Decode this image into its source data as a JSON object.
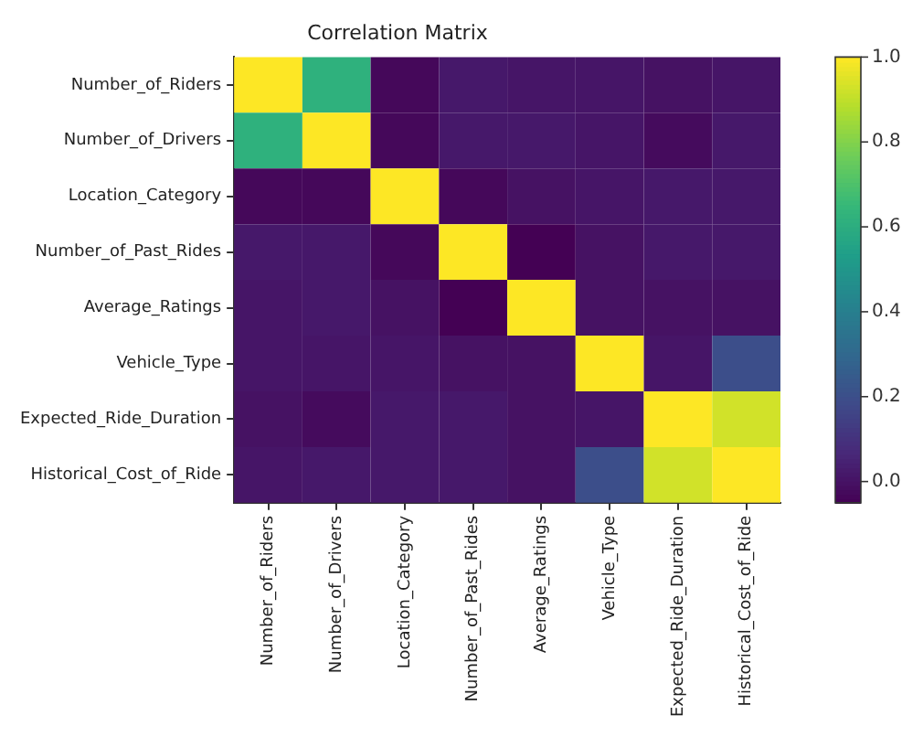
{
  "chart_data": {
    "type": "heatmap",
    "title": "Correlation Matrix",
    "categories": [
      "Number_of_Riders",
      "Number_of_Drivers",
      "Location_Category",
      "Number_of_Past_Rides",
      "Average_Ratings",
      "Vehicle_Type",
      "Expected_Ride_Duration",
      "Historical_Cost_of_Ride"
    ],
    "y_categories": [
      "Number_of_Riders",
      "Number_of_Drivers",
      "Location_Category",
      "Number_of_Past_Rides",
      "Average_Ratings",
      "Vehicle_Type",
      "Expected_Ride_Duration",
      "Historical_Cost_of_Ride"
    ],
    "cells": [
      [
        1,
        0.62,
        -0.03,
        0.02,
        0.01,
        0.01,
        0.0,
        0.01
      ],
      [
        0.62,
        1,
        -0.03,
        0.02,
        0.02,
        0.01,
        -0.02,
        0.02
      ],
      [
        -0.03,
        -0.03,
        1,
        -0.03,
        0.0,
        0.01,
        0.02,
        0.02
      ],
      [
        0.02,
        0.02,
        -0.03,
        1,
        -0.05,
        0.0,
        0.02,
        0.02
      ],
      [
        0.01,
        0.02,
        0.0,
        -0.05,
        1,
        0.0,
        0.0,
        0.0
      ],
      [
        0.01,
        0.01,
        0.01,
        0.0,
        0.0,
        1,
        0.01,
        0.2
      ],
      [
        0.0,
        -0.02,
        0.02,
        0.02,
        0.0,
        0.01,
        1,
        0.93
      ],
      [
        0.01,
        0.02,
        0.02,
        0.02,
        0.0,
        0.2,
        0.93,
        1
      ]
    ],
    "clim": [
      -0.05,
      1
    ],
    "cticks": [
      {
        "value": 0,
        "label": "0.0"
      },
      {
        "value": 0.2,
        "label": "0.2"
      },
      {
        "value": 0.4,
        "label": "0.4"
      },
      {
        "value": 0.6,
        "label": "0.6"
      },
      {
        "value": 0.8,
        "label": "0.8"
      },
      {
        "value": 1,
        "label": "1.0"
      }
    ]
  }
}
